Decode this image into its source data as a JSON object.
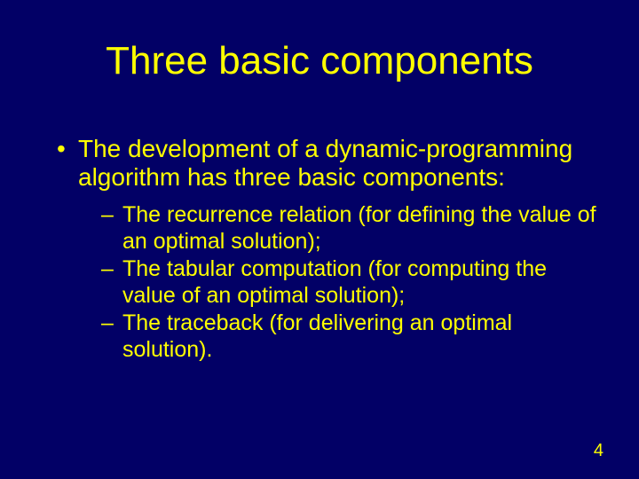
{
  "colors": {
    "background": "#020066",
    "text": "#ffff00"
  },
  "typography": {
    "family": "Comic Sans MS",
    "title_fontsize": 44,
    "level1_fontsize": 28,
    "level2_fontsize": 25,
    "pagenum_fontsize": 20
  },
  "title": "Three basic components",
  "level1_bullet": "•",
  "level1_text": "The development of a dynamic-programming algorithm has three basic components:",
  "level2_dash": "–",
  "sub": {
    "0": "The recurrence relation (for defining the value of an optimal solution);",
    "1": "The tabular computation (for computing the value of an optimal solution);",
    "2": "The traceback (for delivering an optimal solution)."
  },
  "page_number": "4"
}
